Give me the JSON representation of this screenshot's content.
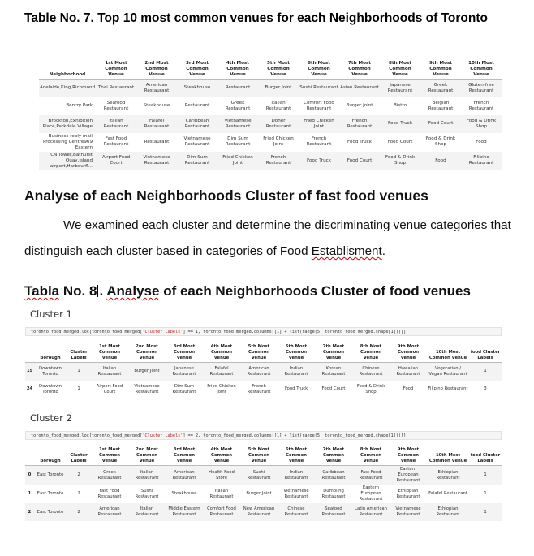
{
  "t7": {
    "caption": "Table No. 7. Top 10 most common venues for each Neighborhoods of Toronto",
    "headers": [
      "Neighborhood",
      "1st Most Common Venue",
      "2nd Most Common Venue",
      "3rd Most Common Venue",
      "4th Most Common Venue",
      "5th Most Common Venue",
      "6th Most Common Venue",
      "7th Most Common Venue",
      "8th Most Common Venue",
      "9th Most Common Venue",
      "10th Most Common Venue"
    ],
    "rows": [
      [
        "Adelaide,King,Richmond",
        "Thai Restaurant",
        "American Restaurant",
        "Steakhouse",
        "Restaurant",
        "Burger Joint",
        "Sushi Restaurant",
        "Asian Restaurant",
        "Japanese Restaurant",
        "Greek Restaurant",
        "Gluten-free Restaurant"
      ],
      [
        "Berczy Park",
        "Seafood Restaurant",
        "Steakhouse",
        "Restaurant",
        "Greek Restaurant",
        "Italian Restaurant",
        "Comfort Food Restaurant",
        "Burger Joint",
        "Bistro",
        "Belgian Restaurant",
        "French Restaurant"
      ],
      [
        "Brockton,Exhibition Place,Parkdale Village",
        "Italian Restaurant",
        "Falafel Restaurant",
        "Caribbean Restaurant",
        "Vietnamese Restaurant",
        "Doner Restaurant",
        "Fried Chicken Joint",
        "French Restaurant",
        "Food Truck",
        "Food Court",
        "Food & Drink Shop"
      ],
      [
        "Business reply mail Processing Centre969 Eastern",
        "Fast Food Restaurant",
        "Restaurant",
        "Vietnamese Restaurant",
        "Dim Sum Restaurant",
        "Fried Chicken Joint",
        "French Restaurant",
        "Food Truck",
        "Food Court",
        "Food & Drink Shop",
        "Food"
      ],
      [
        "CN Tower,Bathurst Quay,Island airport,Harbourfl...",
        "Airport Food Court",
        "Vietnamese Restaurant",
        "Dim Sum Restaurant",
        "Fried Chicken Joint",
        "French Restaurant",
        "Food Truck",
        "Food Court",
        "Food & Drink Shop",
        "Food",
        "Filipino Restaurant"
      ]
    ]
  },
  "section": {
    "title": "Analyse of each Neighborhoods Cluster of fast food venues",
    "para_part1": "We examined each cluster and determine the discriminating venue categories that distinguish each cluster based in categories of Food ",
    "para_word": "Establisment",
    "para_end": "."
  },
  "t8": {
    "caption_word": "Tabla",
    "caption_num": " No. 8",
    "caption_period": ".",
    "caption_word2": "Analyse",
    "caption_rest": " of each Neighborhoods Cluster of food venues"
  },
  "cluster1": {
    "title": "Cluster 1",
    "code_a": "toronto_food_merged.loc[toronto_food_merged[",
    "code_str": "'Cluster Labels'",
    "code_b": "] == 1, toronto_food_merged.columns[[1] + list(range(5, toronto_food_merged.shape[1]))]]",
    "headers": [
      "",
      "Borough",
      "Cluster Labels",
      "1st Most Common Venue",
      "2nd Most Common Venue",
      "3rd Most Common Venue",
      "4th Most Common Venue",
      "5th Most Common Venue",
      "6th Most Common Venue",
      "7th Most Common Venue",
      "8th Most Common Venue",
      "9th Most Common Venue",
      "10th Most Common Venue",
      "food Cluster Labels"
    ],
    "rows": [
      [
        "15",
        "Downtown Toronto",
        "1",
        "Italian Restaurant",
        "Burger Joint",
        "Japanese Restaurant",
        "Falafel Restaurant",
        "American Restaurant",
        "Indian Restaurant",
        "Korean Restaurant",
        "Chinese Restaurant",
        "Hawaiian Restaurant",
        "Vegetarian / Vegan Restaurant",
        "1"
      ],
      [
        "24",
        "Downtown Toronto",
        "1",
        "Airport Food Court",
        "Vietnamese Restaurant",
        "Dim Sum Restaurant",
        "Fried Chicken Joint",
        "French Restaurant",
        "Food Truck",
        "Food Court",
        "Food & Drink Shop",
        "Food",
        "Filipino Restaurant",
        "3"
      ]
    ]
  },
  "cluster2": {
    "title": "Cluster 2",
    "code_a": "toronto_food_merged.loc[toronto_food_merged[",
    "code_str": "'Cluster Labels'",
    "code_b": "] == 2, toronto_food_merged.columns[[1] + list(range(5, toronto_food_merged.shape[1]))]]",
    "headers": [
      "",
      "Borough",
      "Cluster Labels",
      "1st Most Common Venue",
      "2nd Most Common Venue",
      "3rd Most Common Venue",
      "4th Most Common Venue",
      "5th Most Common Venue",
      "6th Most Common Venue",
      "7th Most Common Venue",
      "8th Most Common Venue",
      "9th Most Common Venue",
      "10th Most Common Venue",
      "food Cluster Labels"
    ],
    "rows": [
      [
        "0",
        "East Toronto",
        "2",
        "Greek Restaurant",
        "Italian Restaurant",
        "American Restaurant",
        "Health Food Store",
        "Sushi Restaurant",
        "Indian Restaurant",
        "Caribbean Restaurant",
        "Fast Food Restaurant",
        "Eastern European Restaurant",
        "Ethiopian Restaurant",
        "1"
      ],
      [
        "1",
        "East Toronto",
        "2",
        "Fast Food Restaurant",
        "Sushi Restaurant",
        "Steakhouse",
        "Italian Restaurant",
        "Burger Joint",
        "Vietnamese Restaurant",
        "Dumpling Restaurant",
        "Eastern European Restaurant",
        "Ethiopian Restaurant",
        "Falafel Restaurant",
        "1"
      ],
      [
        "2",
        "East Toronto",
        "2",
        "American Restaurant",
        "Italian Restaurant",
        "Middle Eastern Restaurant",
        "Comfort Food Restaurant",
        "New American Restaurant",
        "Chinese Restaurant",
        "Seafood Restaurant",
        "Latin American Restaurant",
        "Vietnamese Restaurant",
        "Ethiopian Restaurant",
        "1"
      ]
    ]
  }
}
